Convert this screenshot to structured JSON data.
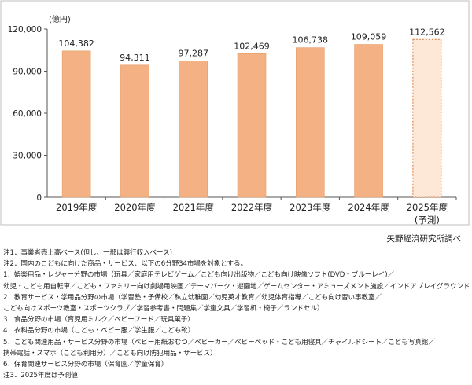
{
  "chart_data": {
    "type": "bar",
    "unit_label": "(億円)",
    "categories": [
      "2019年度",
      "2020年度",
      "2021年度",
      "2022年度",
      "2023年度",
      "2024年度",
      "2025年度"
    ],
    "forecast_label": "(予測)",
    "values": [
      104382,
      94311,
      97287,
      102469,
      106738,
      109059,
      112562
    ],
    "value_labels": [
      "104,382",
      "94,311",
      "97,287",
      "102,469",
      "106,738",
      "109,059",
      "112,562"
    ],
    "forecast_index": 6,
    "ylim": [
      0,
      120000
    ],
    "yticks": [
      0,
      30000,
      60000,
      90000,
      120000
    ],
    "ytick_labels": [
      "0",
      "30,000",
      "60,000",
      "90,000",
      "120,000"
    ],
    "grid": false,
    "colors": {
      "bar": "#f4b183",
      "bar_edge": "#e79d66",
      "forecast_fill": "#fde7d6",
      "forecast_edge": "#d97c3a"
    }
  },
  "source": "矢野経済研究所調べ",
  "notes": [
    "注1．事業者売上高ベース(但し、一部は興行収入ベース)",
    "注2．国内のこどもに向けた商品・サービス、以下の6分野34市場を対象とする。",
    "1．娯楽用品・レジャー分野の市場（玩具／家庭用テレビゲーム／こども向け出版物／こども向け映像ソフト(DVD・ブルーレイ)／",
    "幼児・こども用自転車／こども・ファミリー向け劇場用映画／テーマパーク・遊園地／ゲームセンター・アミューズメント施設／インドアプレイグラウンド)",
    "2．教育サービス・学用品分野の市場（学習塾・予備校／私立幼稚園／幼児英才教育／幼児体育指導／こども向け習い事教室／",
    "こども向けスポーツ教室・スポーツクラブ／学習参考書・問題集／学童文具／学習机・椅子／ランドセル）",
    "3．食品分野の市場（育児用ミルク／ベビーフード／玩具菓子）",
    "4．衣料品分野の市場（こども・ベビー服／学生服／こども靴）",
    "5．こども関連用品・サービス分野の市場（ベビー用紙おむつ／ベビーカー／ベビーベッド・こども用寝具／チャイルドシート／こども写真館／",
    "携帯電話・スマホ（こども利用分）／こども向け防犯用品・サービス）",
    "6．保育関連サービス分野の市場（保育園／学童保育）",
    "注3．2025年度は予測値"
  ]
}
